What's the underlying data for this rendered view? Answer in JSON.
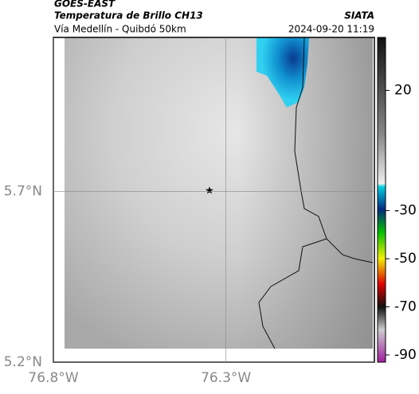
{
  "header": {
    "source": "GOES-EAST",
    "title": "Temperatura de Brillo CH13",
    "org": "SIATA",
    "subtitle": "Vía Medellín - Quibdó 50km",
    "datetime": "2024-09-20 11:19"
  },
  "map": {
    "xlim": [
      -76.8,
      -75.87
    ],
    "ylim": [
      5.2,
      6.15
    ],
    "xticks": [
      {
        "value": -76.8,
        "label": "76.8°W"
      },
      {
        "value": -76.3,
        "label": "76.3°W"
      }
    ],
    "yticks": [
      {
        "value": 5.7,
        "label": "5.7°N"
      },
      {
        "value": 5.2,
        "label": "5.2°N"
      }
    ]
  },
  "colorbar": {
    "lim": [
      -93,
      42
    ],
    "ticks": [
      20,
      -30,
      -50,
      -70,
      -90
    ]
  }
}
